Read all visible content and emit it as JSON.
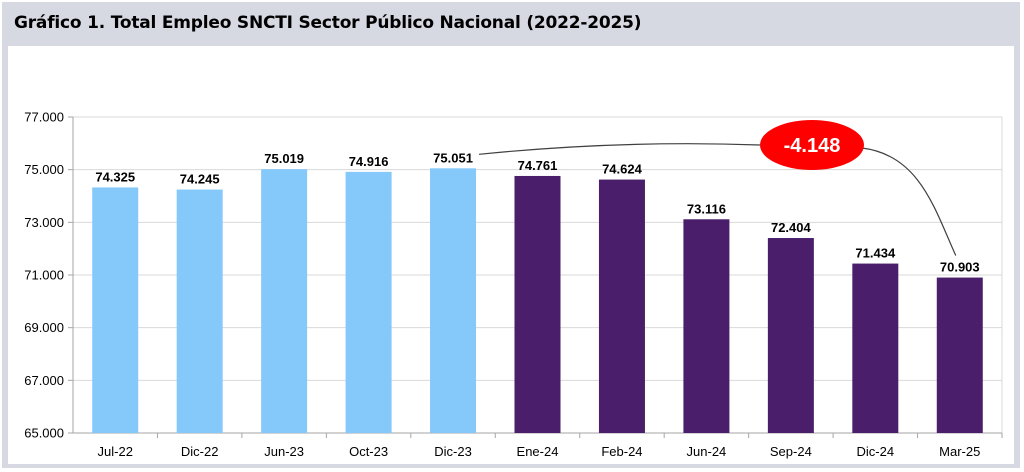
{
  "chart_data": {
    "type": "bar",
    "title": "Gráfico 1. Total Empleo SNCTI Sector Público Nacional (2022-2025)",
    "categories": [
      "Jul-22",
      "Dic-22",
      "Jun-23",
      "Oct-23",
      "Dic-23",
      "Ene-24",
      "Feb-24",
      "Jun-24",
      "Sep-24",
      "Dic-24",
      "Mar-25"
    ],
    "values": [
      74325,
      74245,
      75019,
      74916,
      75051,
      74761,
      74624,
      73116,
      72404,
      71434,
      70903
    ],
    "value_labels": [
      "74.325",
      "74.245",
      "75.019",
      "74.916",
      "75.051",
      "74.761",
      "74.624",
      "73.116",
      "72.404",
      "71.434",
      "70.903"
    ],
    "bar_colors": [
      "#85c8fa",
      "#85c8fa",
      "#85c8fa",
      "#85c8fa",
      "#85c8fa",
      "#4a1e6a",
      "#4a1e6a",
      "#4a1e6a",
      "#4a1e6a",
      "#4a1e6a",
      "#4a1e6a"
    ],
    "ylim": [
      65000,
      77000
    ],
    "yticks": [
      65000,
      67000,
      69000,
      71000,
      73000,
      75000,
      77000
    ],
    "ytick_labels": [
      "65.000",
      "67.000",
      "69.000",
      "71.000",
      "73.000",
      "75.000",
      "77.000"
    ],
    "xlabel": "",
    "ylabel": "",
    "grid": true,
    "annotation": {
      "text": "-4.148",
      "from_category": "Dic-23",
      "to_category": "Mar-25",
      "color": "#ff0000"
    }
  },
  "colors": {
    "frame": "#d6d8e2",
    "grid": "#d9d9d9",
    "axis": "#a6a6a6",
    "light_bar": "#85c8fa",
    "dark_bar": "#4a1e6a",
    "badge": "#ff0000"
  }
}
